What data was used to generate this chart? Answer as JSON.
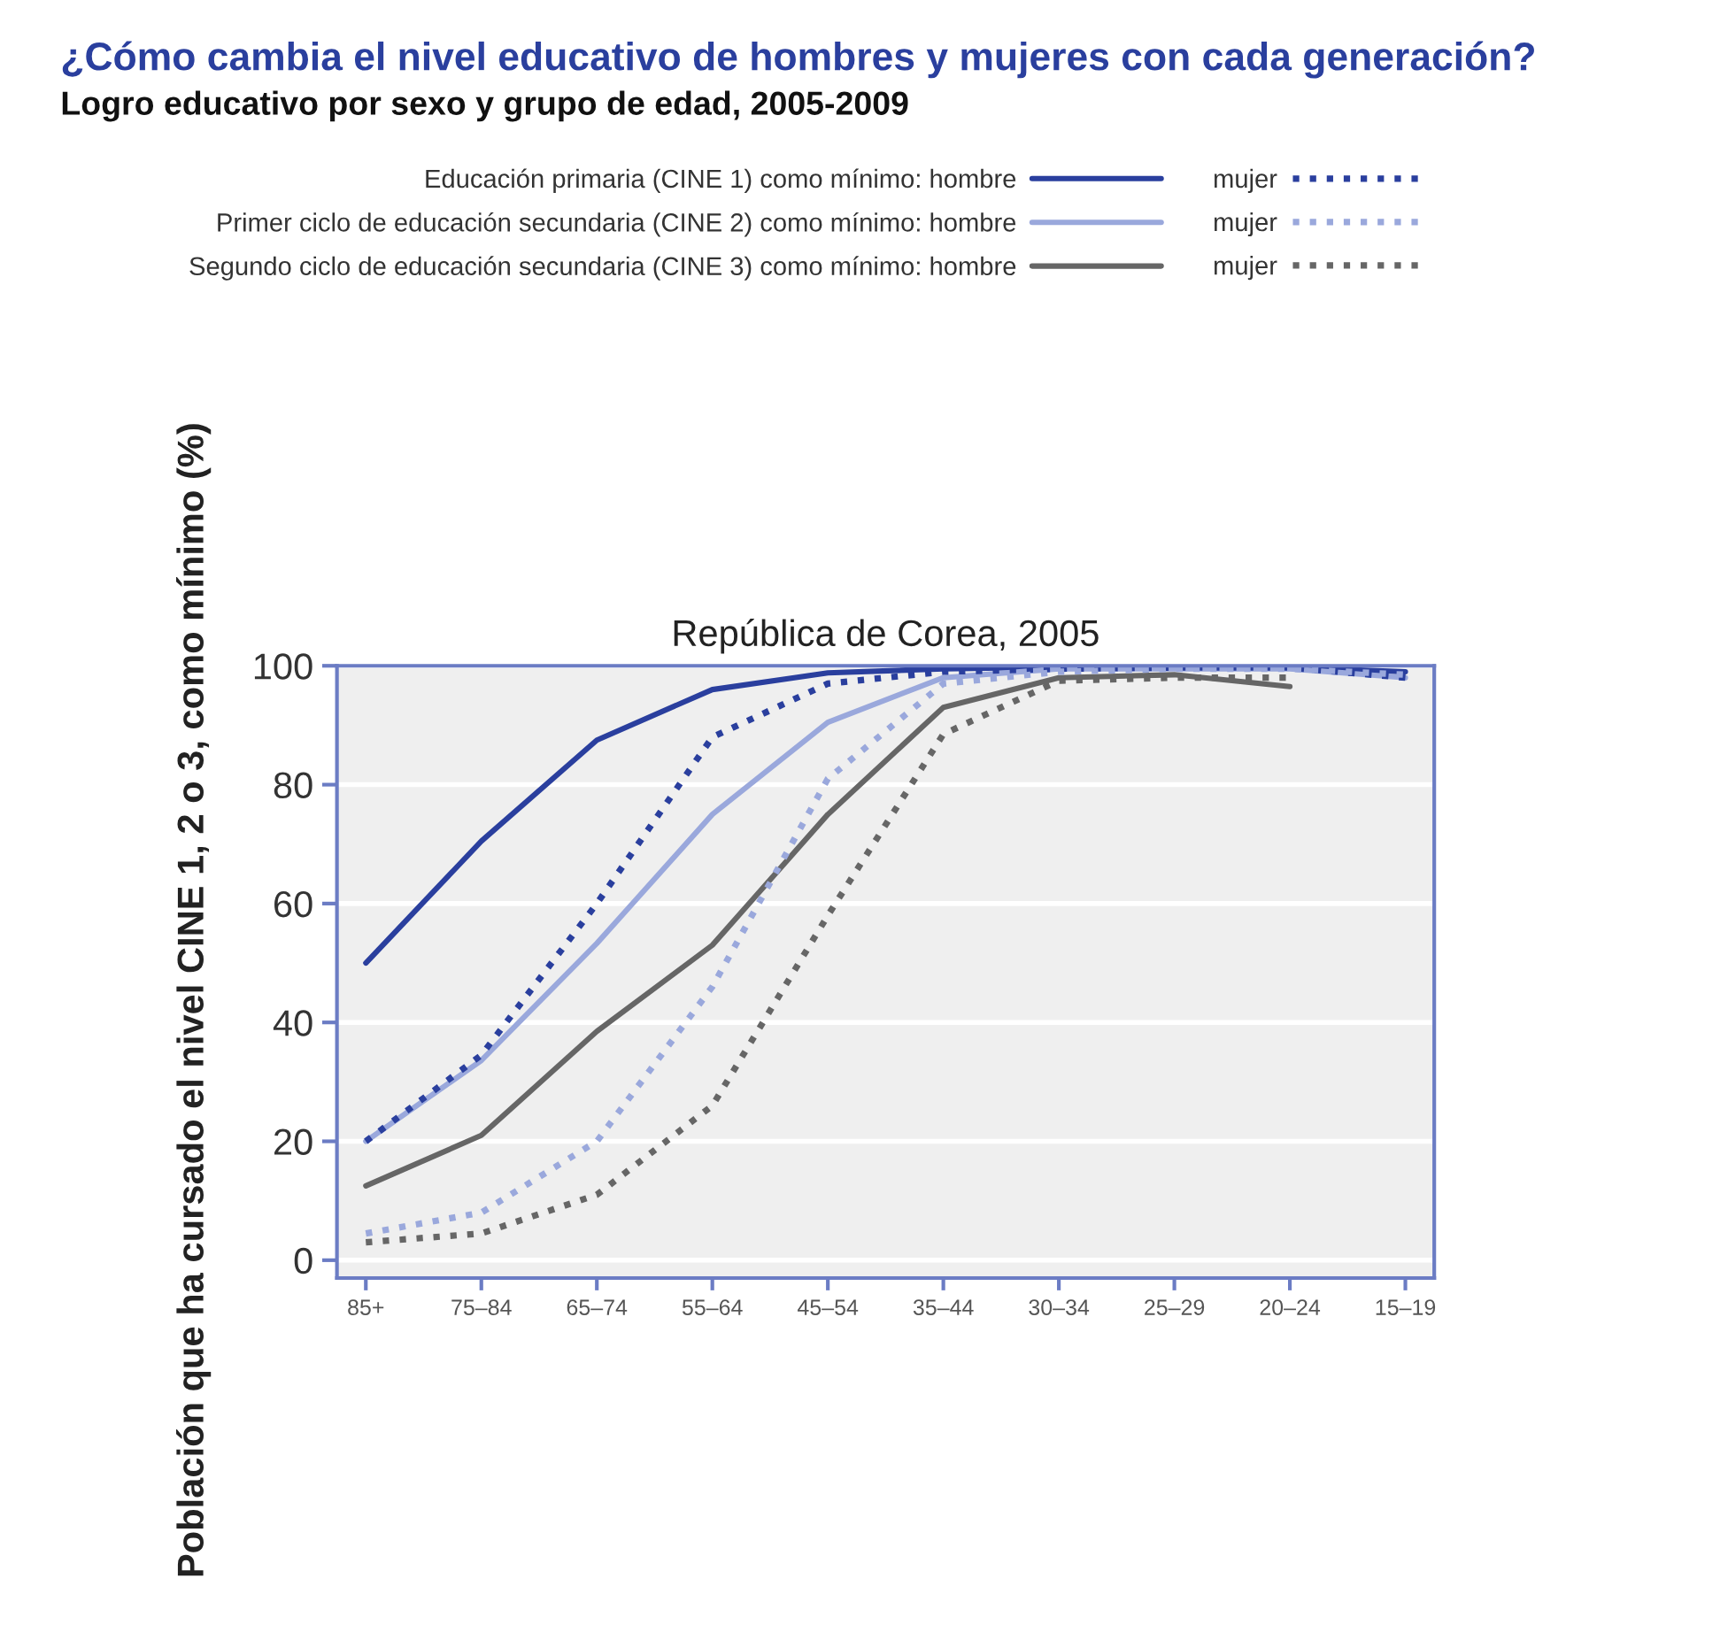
{
  "chart_data": {
    "type": "line",
    "title": "¿Cómo cambia el nivel educativo de hombres y mujeres con cada generación?",
    "subtitle": "Logro educativo por sexo y grupo de edad, 2005-2009",
    "ylabel": "Población que ha cursado el nivel CINE 1, 2 o 3, como mínimo (%)",
    "annotations": [
      "República de Corea, 2005"
    ],
    "categories": [
      "85+",
      "75–84",
      "65–74",
      "55–64",
      "45–54",
      "35–44",
      "30–34",
      "25–29",
      "20–24",
      "15–19"
    ],
    "series": [
      {
        "name": "Educación primaria (CINE 1) como mínimo: hombre",
        "color": "#2a3f9e",
        "line_style": "solid",
        "values": [
          50,
          70.5,
          87.5,
          96,
          98.8,
          99.5,
          99.8,
          99.8,
          99.7,
          99
        ]
      },
      {
        "name": "Primer ciclo de educación secundaria (CINE 2) como mínimo: hombre",
        "color": "#9aa8dc",
        "line_style": "solid",
        "values": [
          20,
          33.6,
          53.3,
          75,
          90.5,
          98,
          99.5,
          99.5,
          99.5,
          98
        ]
      },
      {
        "name": "Segundo ciclo de educación secundaria (CINE 3) como mínimo: hombre",
        "color": "#666666",
        "line_style": "solid",
        "values": [
          12.5,
          21,
          38.5,
          53,
          75,
          93,
          98,
          98.5,
          96.5,
          null
        ]
      },
      {
        "name": "mujer",
        "color": "#2a3f9e",
        "line_style": "dotted",
        "values": [
          20,
          34.5,
          60,
          88,
          97,
          99,
          99.5,
          99.7,
          99.7,
          98
        ]
      },
      {
        "name": "mujer",
        "color": "#9aa8dc",
        "line_style": "dotted",
        "values": [
          4.5,
          8,
          20,
          46,
          81,
          97,
          99,
          99.5,
          99.5,
          98.5
        ]
      },
      {
        "name": "mujer",
        "color": "#666666",
        "line_style": "dotted",
        "values": [
          3,
          4.5,
          11,
          26,
          58,
          88.5,
          97.5,
          98,
          98,
          null
        ]
      }
    ],
    "ylim": [
      -3,
      100
    ],
    "yticks": [
      0,
      20,
      40,
      60,
      80,
      100
    ],
    "grid": "y",
    "legend": "top",
    "marker": "none"
  }
}
